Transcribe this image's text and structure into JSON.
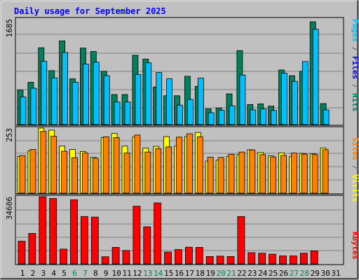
{
  "chart_data": [
    {
      "panel": "hits",
      "type": "bar",
      "title": "Daily usage for September 2025",
      "max_label": "1685",
      "ymax": 1685,
      "categories": [
        "1",
        "2",
        "3",
        "4",
        "5",
        "6",
        "7",
        "8",
        "9",
        "10",
        "11",
        "12",
        "13",
        "14",
        "15",
        "16",
        "17",
        "18",
        "19",
        "20",
        "21",
        "22",
        "23",
        "24",
        "25",
        "26",
        "27",
        "28",
        "29",
        "30",
        "31"
      ],
      "weekend_days": [
        "6",
        "7",
        "13",
        "14",
        "20",
        "21",
        "27",
        "28"
      ],
      "series": [
        {
          "name": "Hits",
          "color": "#00805c",
          "values": [
            550,
            675,
            1225,
            860,
            1335,
            730,
            1220,
            1165,
            850,
            480,
            480,
            1105,
            1045,
            600,
            460,
            460,
            770,
            610,
            250,
            265,
            490,
            1180,
            320,
            330,
            295,
            870,
            780,
            850,
            1640,
            335,
            0
          ]
        },
        {
          "name": "Files",
          "color": "#0000ff",
          "values": [
            0,
            0,
            0,
            0,
            0,
            0,
            0,
            0,
            0,
            0,
            0,
            0,
            0,
            0,
            0,
            0,
            0,
            0,
            0,
            0,
            0,
            0,
            0,
            0,
            0,
            0,
            0,
            0,
            0,
            0,
            0
          ]
        },
        {
          "name": "Pages",
          "color": "#00c0ff",
          "values": [
            440,
            580,
            1010,
            745,
            1150,
            675,
            965,
            995,
            780,
            360,
            360,
            800,
            985,
            830,
            730,
            310,
            400,
            740,
            190,
            230,
            300,
            790,
            235,
            250,
            225,
            820,
            690,
            1005,
            1520,
            235,
            0
          ]
        }
      ],
      "right_label": [
        {
          "text": "Pages",
          "color": "#00c0ff"
        },
        {
          "text": " / ",
          "color": "#606060"
        },
        {
          "text": "Files",
          "color": "#0000ff"
        },
        {
          "text": " / ",
          "color": "#606060"
        },
        {
          "text": "Hits",
          "color": "#00805c"
        }
      ]
    },
    {
      "panel": "visits",
      "type": "bar",
      "max_label": "253",
      "ymax": 253,
      "series": [
        {
          "name": "Visits",
          "color": "#ffff00",
          "values": [
            143,
            165,
            253,
            245,
            183,
            170,
            162,
            139,
            216,
            232,
            183,
            218,
            175,
            182,
            220,
            183,
            220,
            236,
            125,
            128,
            143,
            150,
            169,
            158,
            145,
            157,
            142,
            155,
            153,
            176,
            0
          ]
        },
        {
          "name": "Sites",
          "color": "#ff8000",
          "values": [
            146,
            170,
            240,
            221,
            163,
            138,
            156,
            136,
            219,
            216,
            156,
            226,
            160,
            173,
            180,
            218,
            231,
            219,
            140,
            139,
            151,
            160,
            168,
            150,
            141,
            147,
            156,
            152,
            150,
            169,
            0
          ]
        }
      ],
      "right_label": [
        {
          "text": "Sites",
          "color": "#ff8000"
        },
        {
          "text": " / ",
          "color": "#606060"
        },
        {
          "text": "Visits",
          "color": "#ffff00"
        }
      ]
    },
    {
      "panel": "kbytes",
      "type": "bar",
      "max_label": "34606",
      "ymax": 34606,
      "series": [
        {
          "name": "KBytes",
          "color": "#ff0000",
          "values": [
            11700,
            15700,
            34600,
            33700,
            7600,
            33000,
            24400,
            24100,
            3700,
            8500,
            6900,
            29700,
            19100,
            31400,
            6100,
            7400,
            8600,
            8500,
            3800,
            4000,
            3800,
            24400,
            5800,
            5500,
            5000,
            4100,
            4100,
            5500,
            6700,
            0,
            0
          ]
        }
      ],
      "right_label": [
        {
          "text": "KBytes",
          "color": "#ff0000"
        }
      ]
    }
  ]
}
